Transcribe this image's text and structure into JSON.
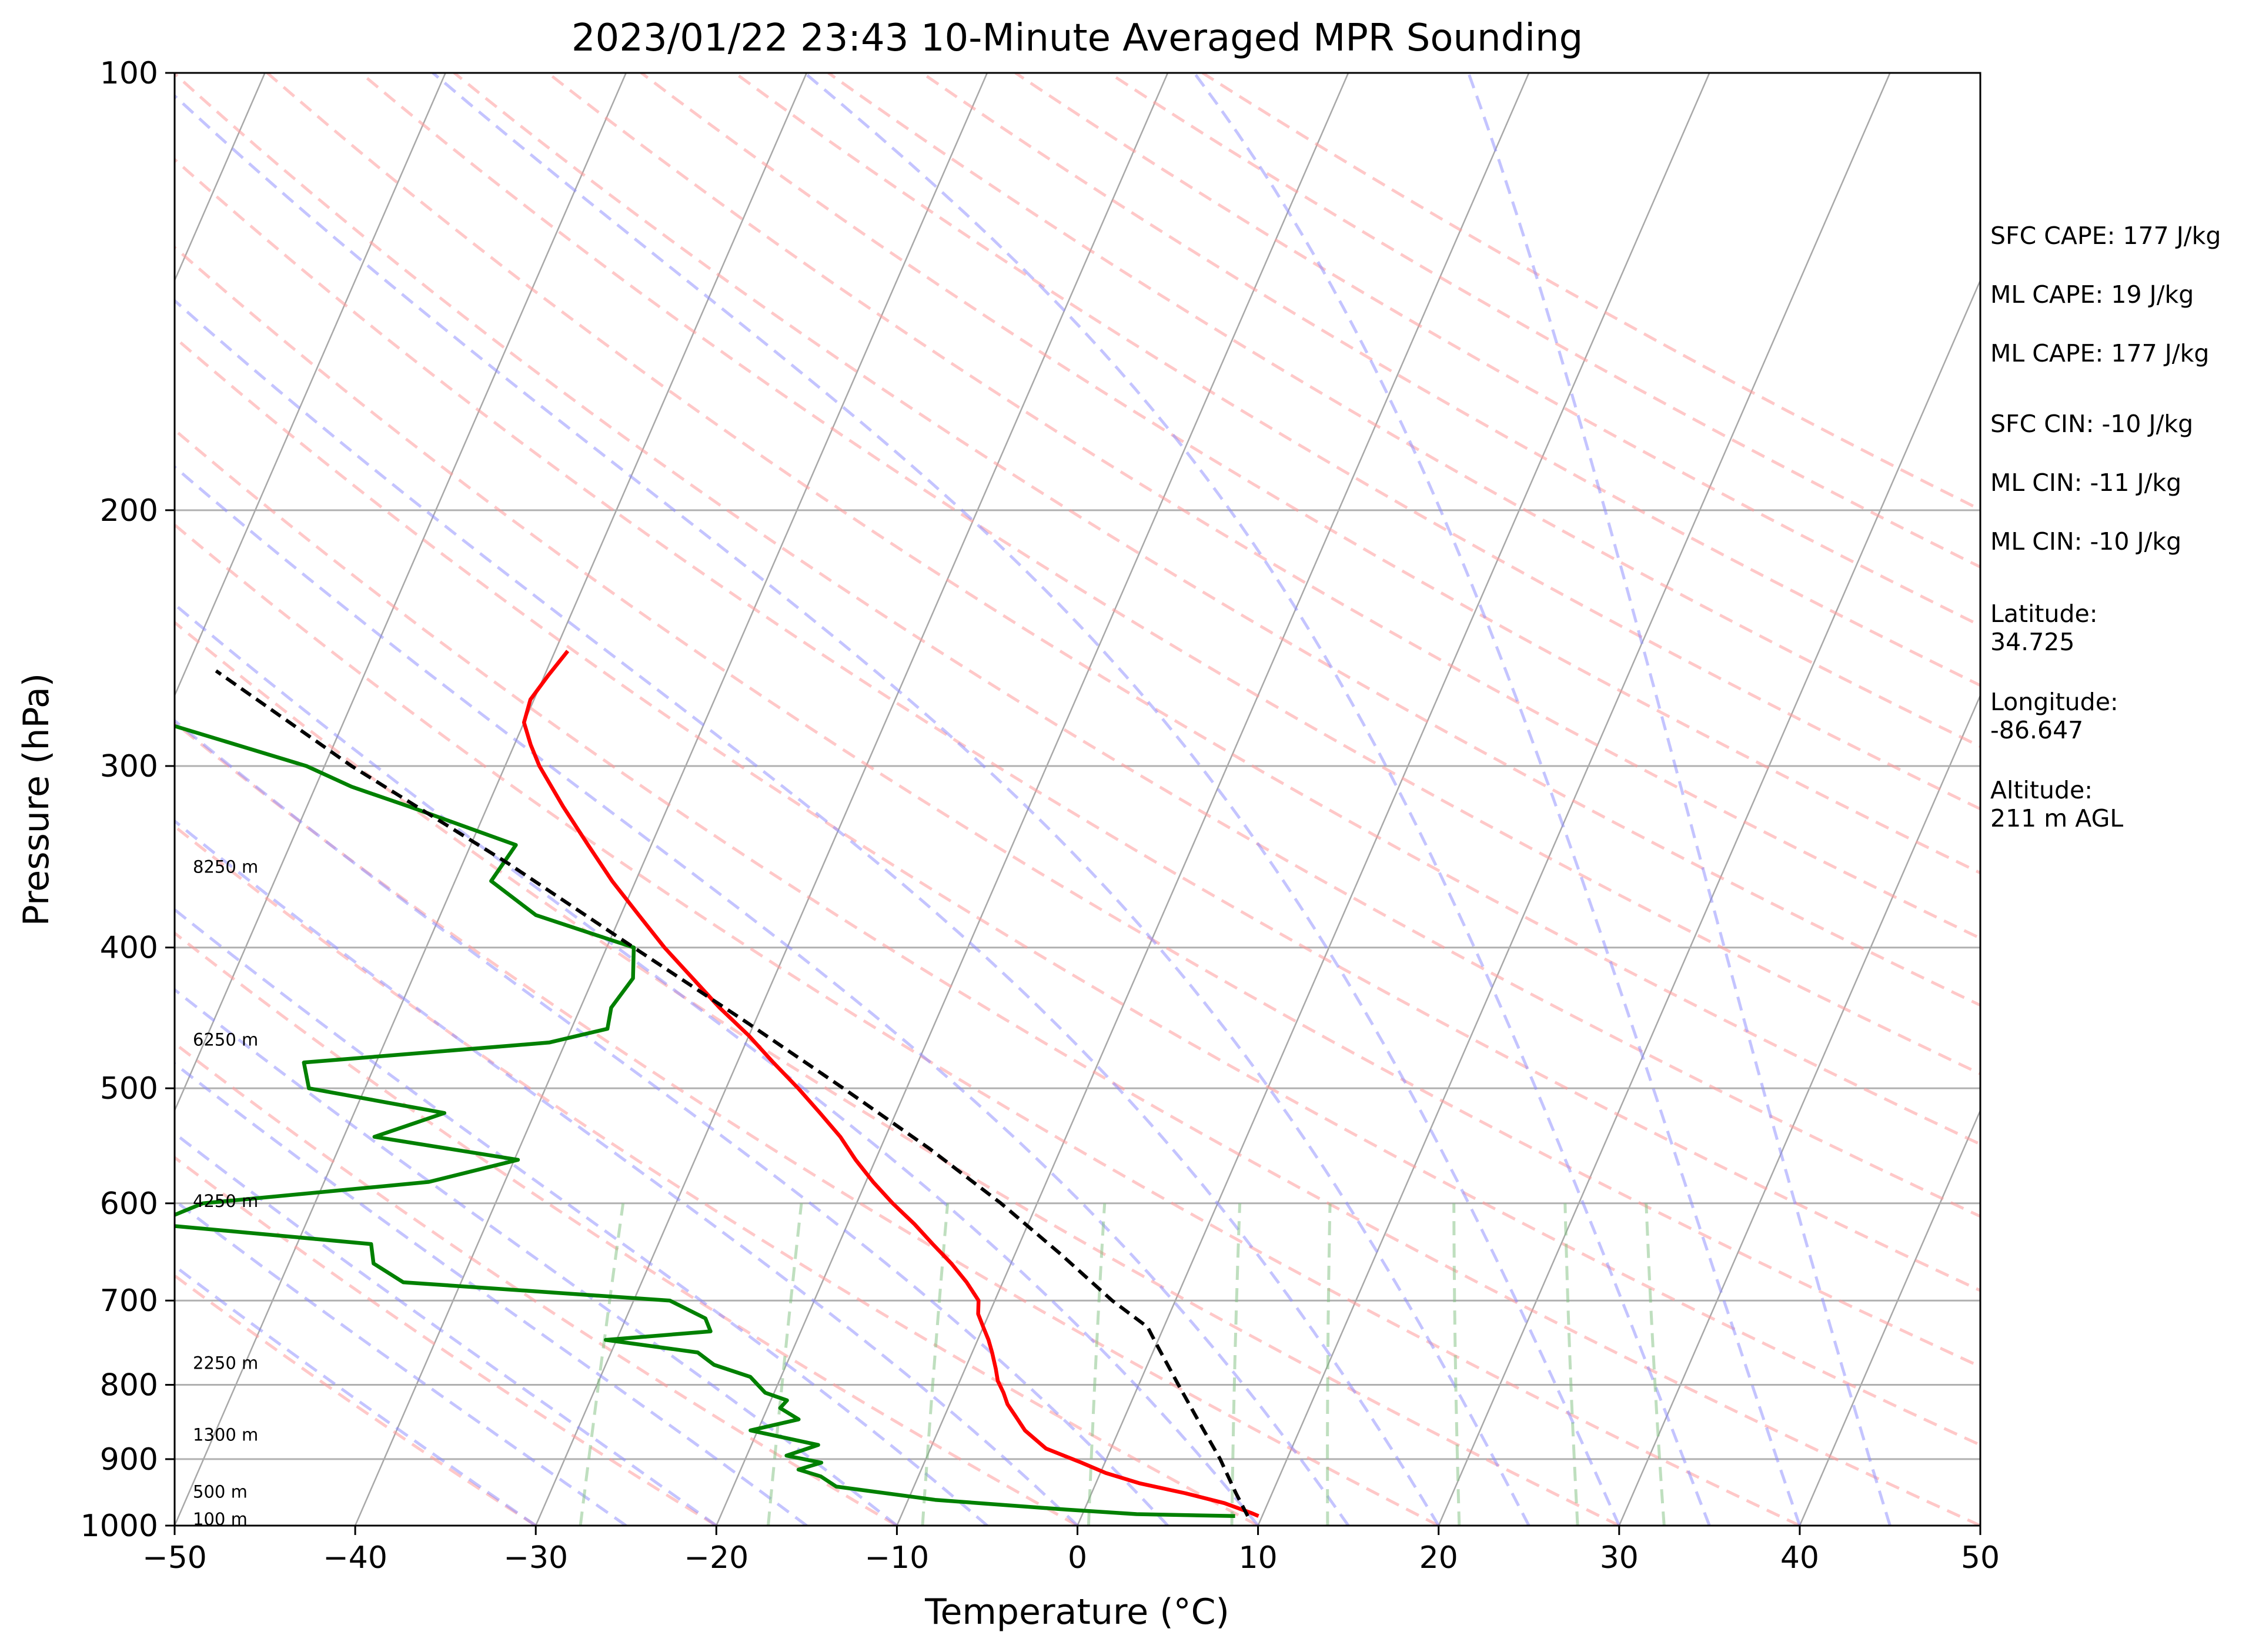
{
  "chart_data": {
    "type": "line",
    "title": "2023/01/22 23:43 10-Minute Averaged MPR Sounding",
    "xlabel": "Temperature (°C)",
    "ylabel": "Pressure (hPa)",
    "xlim": [
      -50,
      50
    ],
    "ylim": [
      1000,
      100
    ],
    "y_scale": "log",
    "x_ticks": [
      "−50",
      "−40",
      "−30",
      "−20",
      "−10",
      "0",
      "10",
      "20",
      "30",
      "40",
      "50"
    ],
    "y_ticks": [
      "100",
      "200",
      "300",
      "400",
      "500",
      "600",
      "700",
      "800",
      "900",
      "1000"
    ],
    "skew": true,
    "grid": true,
    "height_labels": [
      {
        "text": "100 m",
        "pressure": 990
      },
      {
        "text": "500 m",
        "pressure": 948
      },
      {
        "text": "1300 m",
        "pressure": 866
      },
      {
        "text": "2250 m",
        "pressure": 773
      },
      {
        "text": "4250 m",
        "pressure": 598
      },
      {
        "text": "6250 m",
        "pressure": 463
      },
      {
        "text": "8250 m",
        "pressure": 352
      }
    ],
    "side_labels": [
      "SFC CAPE: 177 J/kg",
      "ML CAPE: 19 J/kg",
      "ML CAPE: 177 J/kg",
      "SFC CIN: -10 J/kg",
      "ML CIN: -11 J/kg",
      "ML CIN: -10 J/kg",
      "Latitude:",
      "34.725",
      "Longitude:",
      "-86.647",
      "Altitude:",
      "211 m AGL"
    ],
    "series": [
      {
        "color": "#ff0000",
        "pressure": [
          985,
          980,
          965,
          950,
          935,
          920,
          905,
          885,
          860,
          840,
          825,
          810,
          795,
          780,
          760,
          745,
          730,
          715,
          700,
          680,
          660,
          640,
          620,
          600,
          580,
          560,
          540,
          520,
          500,
          480,
          460,
          440,
          420,
          400,
          380,
          360,
          340,
          320,
          300,
          290,
          280,
          270,
          260,
          250
        ],
        "temperature": [
          9.8,
          9.3,
          7.6,
          5.2,
          2.4,
          0.3,
          -1.3,
          -3.6,
          -5.2,
          -6.1,
          -6.8,
          -7.3,
          -7.9,
          -8.3,
          -8.9,
          -9.4,
          -10.0,
          -10.6,
          -10.9,
          -12.0,
          -13.3,
          -14.8,
          -16.3,
          -18.0,
          -19.6,
          -21.1,
          -22.5,
          -24.2,
          -26.0,
          -28.0,
          -30.0,
          -32.3,
          -34.5,
          -36.8,
          -39.0,
          -41.3,
          -43.5,
          -45.8,
          -48.1,
          -49.1,
          -50.0,
          -50.2,
          -49.8,
          -49.3
        ]
      },
      {
        "color": "#008000",
        "pressure": [
          985,
          982,
          975,
          960,
          940,
          925,
          915,
          905,
          895,
          880,
          860,
          845,
          830,
          820,
          810,
          790,
          775,
          760,
          745,
          735,
          720,
          700,
          680,
          660,
          640,
          620,
          600,
          580,
          560,
          540,
          520,
          500,
          480,
          465,
          455,
          440,
          420,
          400,
          380,
          360,
          340,
          320,
          310,
          300,
          280,
          270,
          260,
          250
        ],
        "temperature": [
          8.5,
          3.0,
          -1.0,
          -8.5,
          -14.3,
          -15.4,
          -16.8,
          -15.7,
          -17.8,
          -16.3,
          -20.4,
          -18.0,
          -19.3,
          -19.1,
          -20.5,
          -21.7,
          -24.0,
          -25.2,
          -30.6,
          -25.0,
          -25.6,
          -28.0,
          -43.2,
          -45.3,
          -45.9,
          -58.5,
          -56.2,
          -44.2,
          -39.8,
          -48.3,
          -45.0,
          -53.1,
          -54.0,
          -40.9,
          -38.0,
          -38.3,
          -37.8,
          -38.5,
          -44.7,
          -48.0,
          -47.5,
          -54.3,
          -58.0,
          -61.0,
          -70.0,
          -73.0,
          -74.0,
          -73.5
        ]
      },
      {
        "color": "#000000",
        "dashed": true,
        "pressure": [
          985,
          950,
          900,
          850,
          800,
          750,
          730,
          700,
          650,
          600,
          550,
          500,
          450,
          400,
          350,
          300,
          258
        ],
        "temperature": [
          9.2,
          8.0,
          6.3,
          4.3,
          2.2,
          0.0,
          -0.9,
          -3.5,
          -7.5,
          -12.0,
          -17.3,
          -23.5,
          -30.5,
          -38.5,
          -47.5,
          -58.5,
          -68.3
        ]
      }
    ]
  }
}
